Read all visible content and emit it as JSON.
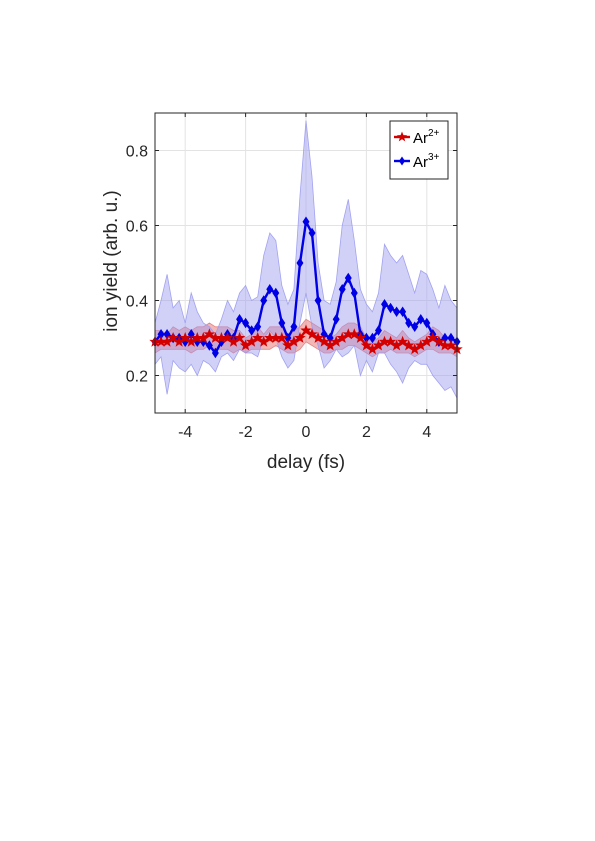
{
  "chart_data": {
    "type": "line",
    "xlabel": "delay (fs)",
    "ylabel": "ion yield (arb. u.)",
    "xlim": [
      -5,
      5
    ],
    "ylim": [
      0.1,
      0.9
    ],
    "xticks": [
      -4,
      -2,
      0,
      2,
      4
    ],
    "xtick_labels": [
      "-4",
      "-2",
      "0",
      "2",
      "4"
    ],
    "yticks": [
      0.2,
      0.4,
      0.6,
      0.8
    ],
    "ytick_labels": [
      "0.2",
      "0.4",
      "0.6",
      "0.8"
    ],
    "grid": true,
    "legend_position": "top-right",
    "x": [
      -5.0,
      -4.8,
      -4.6,
      -4.4,
      -4.2,
      -4.0,
      -3.8,
      -3.6,
      -3.4,
      -3.2,
      -3.0,
      -2.8,
      -2.6,
      -2.4,
      -2.2,
      -2.0,
      -1.8,
      -1.6,
      -1.4,
      -1.2,
      -1.0,
      -0.8,
      -0.6,
      -0.4,
      -0.2,
      0.0,
      0.2,
      0.4,
      0.6,
      0.8,
      1.0,
      1.2,
      1.4,
      1.6,
      1.8,
      2.0,
      2.2,
      2.4,
      2.6,
      2.8,
      3.0,
      3.2,
      3.4,
      3.6,
      3.8,
      4.0,
      4.2,
      4.4,
      4.6,
      4.8,
      5.0
    ],
    "series": [
      {
        "name_base": "Ar",
        "name_sup": "2+",
        "color": "#d40000",
        "band_color": "#e87b7b",
        "marker": "star",
        "values": [
          0.29,
          0.29,
          0.29,
          0.3,
          0.29,
          0.3,
          0.29,
          0.3,
          0.3,
          0.31,
          0.3,
          0.3,
          0.3,
          0.29,
          0.3,
          0.28,
          0.29,
          0.3,
          0.29,
          0.3,
          0.3,
          0.3,
          0.28,
          0.29,
          0.3,
          0.32,
          0.31,
          0.3,
          0.29,
          0.28,
          0.29,
          0.3,
          0.31,
          0.31,
          0.3,
          0.28,
          0.27,
          0.28,
          0.29,
          0.29,
          0.28,
          0.29,
          0.28,
          0.27,
          0.28,
          0.29,
          0.3,
          0.29,
          0.28,
          0.28,
          0.27
        ],
        "lower": [
          0.26,
          0.27,
          0.27,
          0.27,
          0.27,
          0.27,
          0.26,
          0.27,
          0.27,
          0.28,
          0.27,
          0.27,
          0.27,
          0.26,
          0.27,
          0.26,
          0.27,
          0.27,
          0.27,
          0.27,
          0.28,
          0.27,
          0.26,
          0.26,
          0.27,
          0.29,
          0.28,
          0.27,
          0.26,
          0.26,
          0.27,
          0.27,
          0.28,
          0.28,
          0.27,
          0.26,
          0.25,
          0.26,
          0.26,
          0.27,
          0.26,
          0.26,
          0.26,
          0.25,
          0.26,
          0.27,
          0.27,
          0.26,
          0.26,
          0.26,
          0.25
        ],
        "upper": [
          0.32,
          0.32,
          0.31,
          0.33,
          0.32,
          0.33,
          0.32,
          0.33,
          0.33,
          0.34,
          0.33,
          0.33,
          0.33,
          0.32,
          0.32,
          0.3,
          0.31,
          0.33,
          0.31,
          0.33,
          0.33,
          0.33,
          0.3,
          0.32,
          0.33,
          0.35,
          0.34,
          0.33,
          0.32,
          0.3,
          0.31,
          0.33,
          0.34,
          0.34,
          0.33,
          0.3,
          0.29,
          0.3,
          0.32,
          0.31,
          0.3,
          0.32,
          0.3,
          0.29,
          0.3,
          0.31,
          0.33,
          0.32,
          0.3,
          0.3,
          0.29
        ]
      },
      {
        "name_base": "Ar",
        "name_sup": "3+",
        "color": "#0000e6",
        "band_color": "#9a9aef",
        "marker": "diamond",
        "values": [
          0.29,
          0.31,
          0.31,
          0.3,
          0.3,
          0.29,
          0.31,
          0.29,
          0.29,
          0.28,
          0.26,
          0.29,
          0.31,
          0.3,
          0.35,
          0.34,
          0.32,
          0.33,
          0.4,
          0.43,
          0.42,
          0.34,
          0.3,
          0.33,
          0.5,
          0.61,
          0.58,
          0.4,
          0.31,
          0.3,
          0.35,
          0.43,
          0.46,
          0.42,
          0.31,
          0.3,
          0.3,
          0.32,
          0.39,
          0.38,
          0.37,
          0.37,
          0.34,
          0.33,
          0.35,
          0.34,
          0.31,
          0.29,
          0.3,
          0.3,
          0.29
        ],
        "lower": [
          0.23,
          0.25,
          0.15,
          0.24,
          0.22,
          0.21,
          0.23,
          0.2,
          0.24,
          0.23,
          0.21,
          0.25,
          0.26,
          0.24,
          0.27,
          0.26,
          0.26,
          0.25,
          0.3,
          0.32,
          0.3,
          0.25,
          0.22,
          0.24,
          0.34,
          0.42,
          0.33,
          0.28,
          0.22,
          0.24,
          0.27,
          0.25,
          0.26,
          0.28,
          0.2,
          0.24,
          0.21,
          0.26,
          0.26,
          0.23,
          0.21,
          0.18,
          0.22,
          0.24,
          0.23,
          0.23,
          0.2,
          0.18,
          0.16,
          0.17,
          0.14
        ],
        "upper": [
          0.34,
          0.4,
          0.47,
          0.38,
          0.4,
          0.34,
          0.42,
          0.37,
          0.34,
          0.33,
          0.31,
          0.35,
          0.4,
          0.37,
          0.42,
          0.44,
          0.4,
          0.41,
          0.52,
          0.58,
          0.56,
          0.44,
          0.39,
          0.43,
          0.68,
          0.88,
          0.73,
          0.5,
          0.4,
          0.39,
          0.45,
          0.6,
          0.67,
          0.56,
          0.43,
          0.39,
          0.37,
          0.42,
          0.55,
          0.52,
          0.5,
          0.52,
          0.47,
          0.42,
          0.48,
          0.47,
          0.43,
          0.38,
          0.44,
          0.4,
          0.38
        ]
      }
    ]
  }
}
